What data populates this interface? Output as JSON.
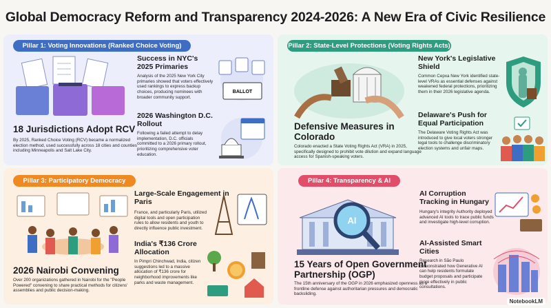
{
  "header": {
    "title": "Global Democracy Reform and Transparency 2024-2026: A New Era of Civic Resilience"
  },
  "pillars": [
    {
      "label": "Pillar 1: Voting Innovations (Ranked Choice Voting)",
      "feature": {
        "heading": "18 Jurisdictions Adopt RCV",
        "body": "By 2025, Ranked Choice Voting (RCV) became a normalized election method, used successfully across 18 cities and counties including Minneapolis and Salt Lake City."
      },
      "items": [
        {
          "heading": "Success in NYC's 2025 Primaries",
          "body": "Analysis of the 2025 New York City primaries showed that voters effectively used rankings to express backup choices, producing nominees with broader community support."
        },
        {
          "heading": "2026 Washington D.C. Rollout",
          "body": "Following a failed attempt to delay implementation, D.C. officials committed to a 2026 primary rollout, prioritizing comprehensive voter education."
        }
      ],
      "art_label": "BALLOT"
    },
    {
      "label": "Pillar 2: State-Level Protections (Voting Rights Acts)",
      "feature": {
        "heading": "Defensive Measures in Colorado",
        "body": "Colorado enacted a State Voting Rights Act (VRA) in 2025, specifically designed to prohibit vote dilution and expand language access for Spanish-speaking voters."
      },
      "items": [
        {
          "heading": "New York's Legislative Shield",
          "body": "Common Cepxa New York identified state-level VRAs as essential defenses against weakened federal protections, prioritizing them in their 2026 legislative agenda."
        },
        {
          "heading": "Delaware's Push for Equal Participation",
          "body": "The Delaware Voting Rights Act was introduced to give local voters stronger legal tools to challenge discriminatory election systems and unfair maps."
        }
      ]
    },
    {
      "label": "Pillar 3: Participatory Democracy",
      "feature": {
        "heading": "2026 Nairobi Convening",
        "body": "Over 200 organizations gathered in Nairobi for the \"People Powered\" convening to share practical methods for citizens' assemblies and public decision-making."
      },
      "items": [
        {
          "heading": "Large-Scale Engagement in Paris",
          "body": "France, and particularly Paris, utilized digital tools and open participation rules to allow residents and youth to directly influence public investment."
        },
        {
          "heading": "India's ₹136 Crore Allocation",
          "body": "In Pimpri Chinchwad, India, citizen suggestions led to a massive allocation of ₹136 crore for neighborhood improvements like parks and waste management."
        }
      ]
    },
    {
      "label": "Pillar 4: Transparency & AI",
      "feature": {
        "heading": "15 Years of Open Government Partnership (OGP)",
        "body": "The 15th anniversary of the OGP in 2026 emphasized openness as a frontline defense against authoritarian pressures and democratic backsliding."
      },
      "items": [
        {
          "heading": "AI Corruption Tracking in Hungary",
          "body": "Hungary's integrity Authority deployed advanced AI tools to trace public funds and investigate high-level corruption."
        },
        {
          "heading": "AI-Assisted Smart Cities",
          "body": "Research in São Paulo demonstrated how Generative AI can help residents formulate budget proposals and participate more effectively in public consultations."
        }
      ],
      "art_label": "AI"
    }
  ],
  "footer": {
    "brand": "NotebookLM"
  }
}
